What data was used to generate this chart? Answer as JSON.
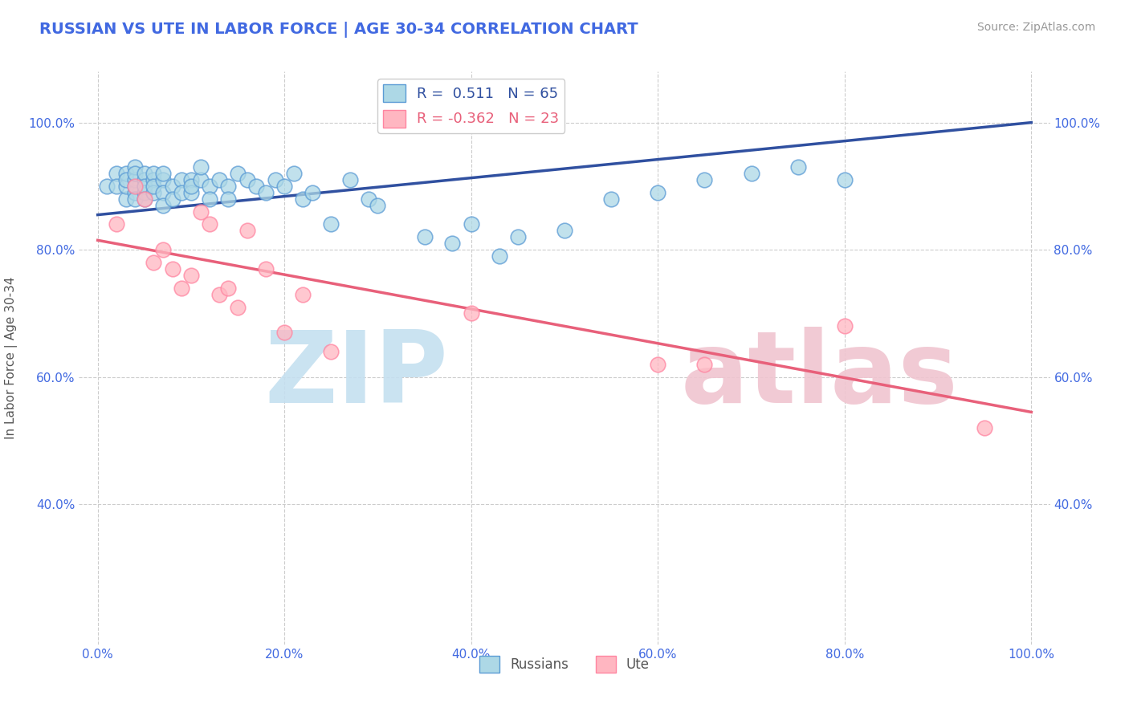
{
  "title": "RUSSIAN VS UTE IN LABOR FORCE | AGE 30-34 CORRELATION CHART",
  "source_text": "Source: ZipAtlas.com",
  "ylabel": "In Labor Force | Age 30-34",
  "xlim": [
    -0.02,
    1.02
  ],
  "ylim": [
    0.18,
    1.08
  ],
  "xtick_labels": [
    "0.0%",
    "20.0%",
    "40.0%",
    "60.0%",
    "80.0%",
    "100.0%"
  ],
  "xtick_values": [
    0.0,
    0.2,
    0.4,
    0.6,
    0.8,
    1.0
  ],
  "ytick_labels": [
    "40.0%",
    "60.0%",
    "80.0%",
    "100.0%"
  ],
  "ytick_values": [
    0.4,
    0.6,
    0.8,
    1.0
  ],
  "russian_color": "#ADD8E6",
  "russian_edge_color": "#5B9BD5",
  "ute_color": "#FFB6C1",
  "ute_edge_color": "#FF85A1",
  "trend_russian_color": "#3050A0",
  "trend_ute_color": "#E8607A",
  "R_russian": 0.511,
  "N_russian": 65,
  "R_ute": -0.362,
  "N_ute": 23,
  "background_color": "#FFFFFF",
  "grid_color": "#CCCCCC",
  "title_color": "#4169E1",
  "axis_color": "#4169E1",
  "russian_x": [
    0.01,
    0.02,
    0.02,
    0.03,
    0.03,
    0.03,
    0.03,
    0.04,
    0.04,
    0.04,
    0.04,
    0.04,
    0.04,
    0.05,
    0.05,
    0.05,
    0.05,
    0.05,
    0.06,
    0.06,
    0.06,
    0.06,
    0.07,
    0.07,
    0.07,
    0.07,
    0.08,
    0.08,
    0.09,
    0.09,
    0.1,
    0.1,
    0.1,
    0.11,
    0.11,
    0.12,
    0.12,
    0.13,
    0.14,
    0.14,
    0.15,
    0.16,
    0.17,
    0.18,
    0.19,
    0.2,
    0.21,
    0.22,
    0.23,
    0.25,
    0.27,
    0.29,
    0.3,
    0.35,
    0.38,
    0.4,
    0.43,
    0.45,
    0.5,
    0.55,
    0.6,
    0.65,
    0.7,
    0.75,
    0.8
  ],
  "russian_y": [
    0.9,
    0.92,
    0.9,
    0.88,
    0.9,
    0.92,
    0.91,
    0.89,
    0.91,
    0.93,
    0.9,
    0.88,
    0.92,
    0.91,
    0.89,
    0.92,
    0.9,
    0.88,
    0.91,
    0.89,
    0.92,
    0.9,
    0.91,
    0.89,
    0.92,
    0.87,
    0.9,
    0.88,
    0.91,
    0.89,
    0.91,
    0.89,
    0.9,
    0.91,
    0.93,
    0.9,
    0.88,
    0.91,
    0.9,
    0.88,
    0.92,
    0.91,
    0.9,
    0.89,
    0.91,
    0.9,
    0.92,
    0.88,
    0.89,
    0.84,
    0.91,
    0.88,
    0.87,
    0.82,
    0.81,
    0.84,
    0.79,
    0.82,
    0.83,
    0.88,
    0.89,
    0.91,
    0.92,
    0.93,
    0.91
  ],
  "ute_x": [
    0.02,
    0.04,
    0.05,
    0.06,
    0.07,
    0.08,
    0.09,
    0.1,
    0.11,
    0.12,
    0.13,
    0.14,
    0.15,
    0.16,
    0.18,
    0.2,
    0.22,
    0.25,
    0.4,
    0.6,
    0.65,
    0.8,
    0.95
  ],
  "ute_y": [
    0.84,
    0.9,
    0.88,
    0.78,
    0.8,
    0.77,
    0.74,
    0.76,
    0.86,
    0.84,
    0.73,
    0.74,
    0.71,
    0.83,
    0.77,
    0.67,
    0.73,
    0.64,
    0.7,
    0.62,
    0.62,
    0.68,
    0.52
  ],
  "trend_russian_start_y": 0.855,
  "trend_russian_end_y": 1.0,
  "trend_ute_start_y": 0.815,
  "trend_ute_end_y": 0.545,
  "watermark_zip_color": "#C5E0F0",
  "watermark_atlas_color": "#F0C5D0"
}
